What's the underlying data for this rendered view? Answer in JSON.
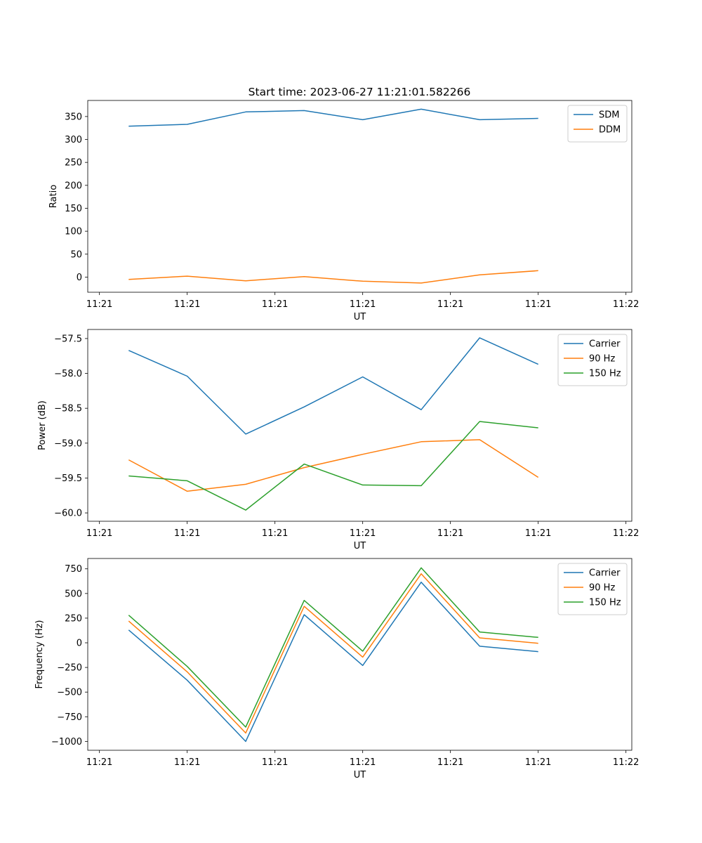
{
  "title": "Start time: 2023-06-27 11:21:01.582266",
  "colors": {
    "blue": "#1f77b4",
    "orange": "#ff7f0e",
    "green": "#2ca02c"
  },
  "chart_data": [
    {
      "type": "line",
      "title": "Start time: 2023-06-27 11:21:01.582266",
      "xlabel": "UT",
      "ylabel": "Ratio",
      "xlim": [
        0,
        9.3
      ],
      "ylim": [
        -33,
        385
      ],
      "x": [
        0.7,
        1.7,
        2.7,
        3.7,
        4.7,
        5.7,
        6.7,
        7.7
      ],
      "x_ticks": [
        0.2,
        1.7,
        3.2,
        4.7,
        6.2,
        7.7,
        9.2
      ],
      "x_tick_labels": [
        "11:21",
        "11:21",
        "11:21",
        "11:21",
        "11:21",
        "11:21",
        "11:22"
      ],
      "y_ticks": [
        0,
        50,
        100,
        150,
        200,
        250,
        300,
        350
      ],
      "y_tick_labels": [
        "0",
        "50",
        "100",
        "150",
        "200",
        "250",
        "300",
        "350"
      ],
      "legend": "top-right",
      "grid": false,
      "series": [
        {
          "name": "SDM",
          "color": "#1f77b4",
          "values": [
            329,
            333,
            360,
            363,
            343,
            366,
            343,
            346
          ]
        },
        {
          "name": "DDM",
          "color": "#ff7f0e",
          "values": [
            -5,
            2,
            -8,
            1,
            -9,
            -13,
            5,
            14
          ]
        }
      ]
    },
    {
      "type": "line",
      "title": "",
      "xlabel": "UT",
      "ylabel": "Power (dB)",
      "xlim": [
        0,
        9.3
      ],
      "ylim": [
        -60.12,
        -57.37
      ],
      "x": [
        0.7,
        1.7,
        2.7,
        3.7,
        4.7,
        5.7,
        6.7,
        7.7
      ],
      "x_ticks": [
        0.2,
        1.7,
        3.2,
        4.7,
        6.2,
        7.7,
        9.2
      ],
      "x_tick_labels": [
        "11:21",
        "11:21",
        "11:21",
        "11:21",
        "11:21",
        "11:21",
        "11:22"
      ],
      "y_ticks": [
        -60.0,
        -59.5,
        -59.0,
        -58.5,
        -58.0,
        -57.5
      ],
      "y_tick_labels": [
        "−60.0",
        "−59.5",
        "−59.0",
        "−58.5",
        "−58.0",
        "−57.5"
      ],
      "legend": "top-right",
      "grid": false,
      "series": [
        {
          "name": "Carrier",
          "color": "#1f77b4",
          "values": [
            -57.67,
            -58.04,
            -58.87,
            -58.48,
            -58.05,
            -58.52,
            -57.49,
            -57.87
          ]
        },
        {
          "name": "90 Hz",
          "color": "#ff7f0e",
          "values": [
            -59.24,
            -59.69,
            -59.59,
            -59.35,
            -59.16,
            -58.98,
            -58.95,
            -59.49
          ]
        },
        {
          "name": "150 Hz",
          "color": "#2ca02c",
          "values": [
            -59.47,
            -59.54,
            -59.96,
            -59.3,
            -59.6,
            -59.61,
            -58.69,
            -58.78
          ]
        }
      ]
    },
    {
      "type": "line",
      "title": "",
      "xlabel": "UT",
      "ylabel": "Frequency (Hz)",
      "xlim": [
        0,
        9.3
      ],
      "ylim": [
        -1090,
        855
      ],
      "x": [
        0.7,
        1.7,
        2.7,
        3.7,
        4.7,
        5.7,
        6.7,
        7.7
      ],
      "x_ticks": [
        0.2,
        1.7,
        3.2,
        4.7,
        6.2,
        7.7,
        9.2
      ],
      "x_tick_labels": [
        "11:21",
        "11:21",
        "11:21",
        "11:21",
        "11:21",
        "11:21",
        "11:22"
      ],
      "y_ticks": [
        -1000,
        -750,
        -500,
        -250,
        0,
        250,
        500,
        750
      ],
      "y_tick_labels": [
        "−1000",
        "−750",
        "−500",
        "−250",
        "0",
        "250",
        "500",
        "750"
      ],
      "legend": "top-right",
      "grid": false,
      "series": [
        {
          "name": "Carrier",
          "color": "#1f77b4",
          "values": [
            130,
            -380,
            -1000,
            285,
            -230,
            615,
            -35,
            -90
          ]
        },
        {
          "name": "90 Hz",
          "color": "#ff7f0e",
          "values": [
            220,
            -295,
            -915,
            370,
            -145,
            700,
            50,
            -5
          ]
        },
        {
          "name": "150 Hz",
          "color": "#2ca02c",
          "values": [
            280,
            -240,
            -855,
            430,
            -85,
            760,
            110,
            55
          ]
        }
      ]
    }
  ]
}
